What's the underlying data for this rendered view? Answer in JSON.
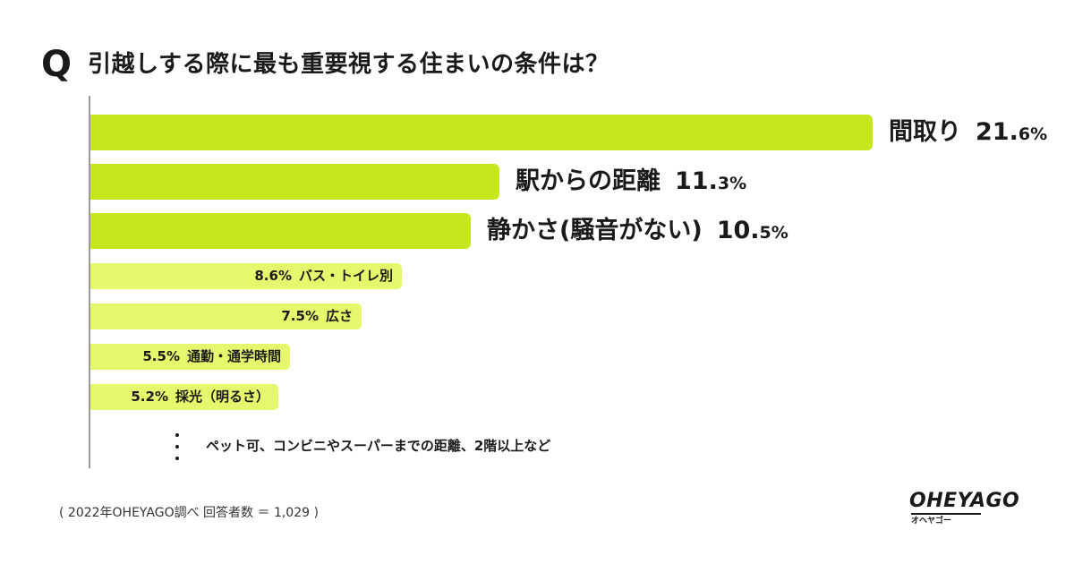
{
  "question": {
    "mark": "Q",
    "title": "引越しする際に最も重要視する住まいの条件は？"
  },
  "chart_data": {
    "type": "bar",
    "orientation": "horizontal",
    "unit": "%",
    "categories": [
      "間取り",
      "駅からの距離",
      "静かさ(騒音がない)",
      "バス・トイレ別",
      "広さ",
      "通勤・通学時間",
      "採光（明るさ）"
    ],
    "values": [
      21.6,
      11.3,
      10.5,
      8.6,
      7.5,
      5.5,
      5.2
    ],
    "labels": [
      {
        "name": "間取り",
        "pct_int": "21.",
        "pct_dec": "6%"
      },
      {
        "name": "駅からの距離",
        "pct_int": "11.",
        "pct_dec": "3%"
      },
      {
        "name": "静かさ(騒音がない)",
        "pct_int": "10.",
        "pct_dec": "5%"
      },
      {
        "name": "バス・トイレ別",
        "pct": "8.6%"
      },
      {
        "name": "広さ",
        "pct": "7.5%"
      },
      {
        "name": "通勤・通学時間",
        "pct": "5.5%"
      },
      {
        "name": "採光（明るさ）",
        "pct": "5.2%"
      }
    ],
    "colors": {
      "top3": "#c8e61e",
      "others": "#e7f76d"
    },
    "others_note": "ペット可、コンビニやスーパーまでの距離、2階以上など"
  },
  "footer": {
    "source": "( 2022年OHEYAGO調べ 回答者数 ＝ 1,029 )"
  },
  "logo": {
    "word": "OHEYAGO",
    "kana": "オヘヤゴー"
  }
}
